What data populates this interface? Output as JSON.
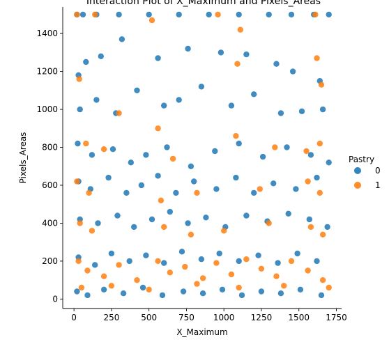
{
  "chart_data": {
    "type": "scatter",
    "title": "Interaction Plot of X_Maximum and Pixels_Areas",
    "xlabel": "X_Maximum",
    "ylabel": "Pixels_Areas",
    "xlim": [
      -75,
      1785
    ],
    "ylim": [
      -50,
      1540
    ],
    "x_ticks": [
      0,
      250,
      500,
      750,
      1000,
      1250,
      1500,
      1750
    ],
    "y_ticks": [
      0,
      200,
      400,
      600,
      800,
      1000,
      1200,
      1400
    ],
    "grid": false,
    "legend": {
      "title": "Pastry",
      "placement": "right",
      "entries": [
        {
          "label": "0",
          "color": "#1f77b4"
        },
        {
          "label": "1",
          "color": "#ff7f0e"
        }
      ]
    },
    "series": [
      {
        "name": "0",
        "color": "#1f77b4",
        "points": [
          [
            20,
            1500
          ],
          [
            60,
            1500
          ],
          [
            150,
            1500
          ],
          [
            300,
            1500
          ],
          [
            500,
            1500
          ],
          [
            700,
            1500
          ],
          [
            900,
            1500
          ],
          [
            1100,
            1500
          ],
          [
            1300,
            1500
          ],
          [
            1450,
            1500
          ],
          [
            1600,
            1500
          ],
          [
            1700,
            1500
          ],
          [
            30,
            1180
          ],
          [
            80,
            1250
          ],
          [
            180,
            1280
          ],
          [
            320,
            1370
          ],
          [
            560,
            1270
          ],
          [
            760,
            1320
          ],
          [
            980,
            1300
          ],
          [
            1150,
            1290
          ],
          [
            1350,
            1240
          ],
          [
            1460,
            1200
          ],
          [
            1640,
            1150
          ],
          [
            40,
            1000
          ],
          [
            150,
            1050
          ],
          [
            280,
            980
          ],
          [
            420,
            1100
          ],
          [
            600,
            1020
          ],
          [
            700,
            1050
          ],
          [
            850,
            1120
          ],
          [
            1050,
            1020
          ],
          [
            1200,
            1080
          ],
          [
            1380,
            980
          ],
          [
            1520,
            990
          ],
          [
            1660,
            1000
          ],
          [
            25,
            820
          ],
          [
            120,
            760
          ],
          [
            260,
            790
          ],
          [
            380,
            720
          ],
          [
            480,
            760
          ],
          [
            620,
            800
          ],
          [
            780,
            700
          ],
          [
            940,
            780
          ],
          [
            1100,
            820
          ],
          [
            1260,
            750
          ],
          [
            1420,
            800
          ],
          [
            1580,
            760
          ],
          [
            1700,
            720
          ],
          [
            30,
            620
          ],
          [
            110,
            580
          ],
          [
            230,
            640
          ],
          [
            350,
            560
          ],
          [
            450,
            600
          ],
          [
            560,
            650
          ],
          [
            680,
            560
          ],
          [
            800,
            620
          ],
          [
            950,
            580
          ],
          [
            1080,
            640
          ],
          [
            1200,
            560
          ],
          [
            1330,
            610
          ],
          [
            1480,
            580
          ],
          [
            1620,
            640
          ],
          [
            40,
            420
          ],
          [
            160,
            400
          ],
          [
            290,
            440
          ],
          [
            400,
            380
          ],
          [
            520,
            420
          ],
          [
            640,
            460
          ],
          [
            760,
            400
          ],
          [
            880,
            430
          ],
          [
            1010,
            380
          ],
          [
            1150,
            440
          ],
          [
            1290,
            410
          ],
          [
            1430,
            450
          ],
          [
            1570,
            420
          ],
          [
            1690,
            380
          ],
          [
            30,
            220
          ],
          [
            140,
            180
          ],
          [
            250,
            240
          ],
          [
            370,
            200
          ],
          [
            480,
            230
          ],
          [
            600,
            190
          ],
          [
            720,
            250
          ],
          [
            850,
            210
          ],
          [
            970,
            240
          ],
          [
            1100,
            200
          ],
          [
            1230,
            230
          ],
          [
            1360,
            190
          ],
          [
            1490,
            240
          ],
          [
            1620,
            200
          ],
          [
            20,
            40
          ],
          [
            90,
            20
          ],
          [
            200,
            50
          ],
          [
            330,
            30
          ],
          [
            460,
            60
          ],
          [
            590,
            20
          ],
          [
            730,
            40
          ],
          [
            860,
            30
          ],
          [
            990,
            50
          ],
          [
            1120,
            20
          ],
          [
            1250,
            40
          ],
          [
            1380,
            30
          ],
          [
            1510,
            50
          ],
          [
            1650,
            20
          ]
        ]
      },
      {
        "name": "1",
        "color": "#ff7f0e",
        "points": [
          [
            20,
            1500
          ],
          [
            140,
            1500
          ],
          [
            520,
            1470
          ],
          [
            960,
            1500
          ],
          [
            1110,
            1420
          ],
          [
            1610,
            1500
          ],
          [
            35,
            1160
          ],
          [
            1090,
            1240
          ],
          [
            1620,
            1270
          ],
          [
            1650,
            1130
          ],
          [
            80,
            820
          ],
          [
            200,
            790
          ],
          [
            300,
            980
          ],
          [
            560,
            900
          ],
          [
            660,
            740
          ],
          [
            1080,
            860
          ],
          [
            1340,
            800
          ],
          [
            1550,
            780
          ],
          [
            1640,
            820
          ],
          [
            20,
            620
          ],
          [
            100,
            560
          ],
          [
            580,
            520
          ],
          [
            820,
            560
          ],
          [
            1240,
            580
          ],
          [
            1560,
            620
          ],
          [
            1640,
            560
          ],
          [
            40,
            400
          ],
          [
            120,
            360
          ],
          [
            600,
            380
          ],
          [
            780,
            340
          ],
          [
            1000,
            360
          ],
          [
            1300,
            400
          ],
          [
            1580,
            380
          ],
          [
            1660,
            340
          ],
          [
            30,
            200
          ],
          [
            90,
            150
          ],
          [
            200,
            120
          ],
          [
            300,
            180
          ],
          [
            420,
            100
          ],
          [
            560,
            200
          ],
          [
            640,
            140
          ],
          [
            740,
            170
          ],
          [
            860,
            110
          ],
          [
            950,
            190
          ],
          [
            1050,
            130
          ],
          [
            1150,
            210
          ],
          [
            1250,
            160
          ],
          [
            1350,
            120
          ],
          [
            1450,
            200
          ],
          [
            1560,
            150
          ],
          [
            1660,
            100
          ],
          [
            50,
            60
          ],
          [
            250,
            70
          ],
          [
            500,
            50
          ],
          [
            820,
            80
          ],
          [
            1100,
            60
          ],
          [
            1400,
            70
          ],
          [
            1700,
            60
          ]
        ]
      }
    ]
  }
}
